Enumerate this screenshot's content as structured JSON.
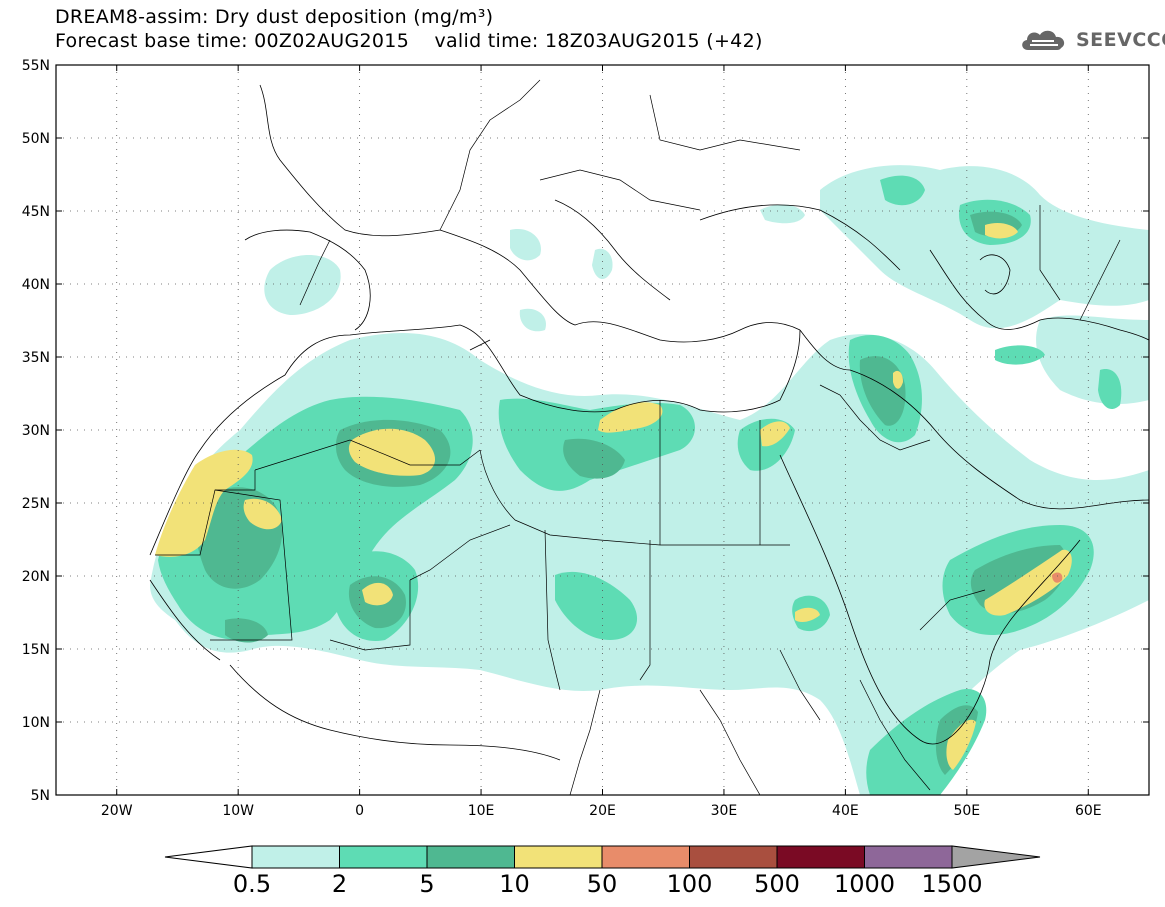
{
  "header": {
    "title_line1": "DREAM8-assim: Dry dust deposition (mg/m³)",
    "title_line2": "Forecast base time: 00Z02AUG2015    valid time: 18Z03AUG2015 (+42)",
    "brand": "SEEVCCC",
    "brand_icon": "cloud-icon"
  },
  "map": {
    "lon_ticks": [
      "20W",
      "10W",
      "0",
      "10E",
      "20E",
      "30E",
      "40E",
      "50E",
      "60E"
    ],
    "lat_ticks": [
      "55N",
      "50N",
      "45N",
      "40N",
      "35N",
      "30N",
      "25N",
      "20N",
      "15N",
      "10N",
      "5N"
    ],
    "lon_values": [
      -20,
      -10,
      0,
      10,
      20,
      30,
      40,
      50,
      60
    ],
    "lat_values": [
      55,
      50,
      45,
      40,
      35,
      30,
      25,
      20,
      15,
      10,
      5
    ],
    "lon_range": [
      -25,
      65
    ],
    "lat_range": [
      5,
      55
    ],
    "grid": "dotted"
  },
  "colorbar": {
    "labels": [
      "0.5",
      "2",
      "5",
      "10",
      "50",
      "100",
      "500",
      "1000",
      "1500"
    ],
    "colors": [
      "#c0f0e8",
      "#5edcb4",
      "#4fb891",
      "#f2e278",
      "#e88c6a",
      "#a94f3f",
      "#7a0a24",
      "#8e6799"
    ],
    "under_color": "#ffffff",
    "over_color": "#a3a3a3"
  }
}
